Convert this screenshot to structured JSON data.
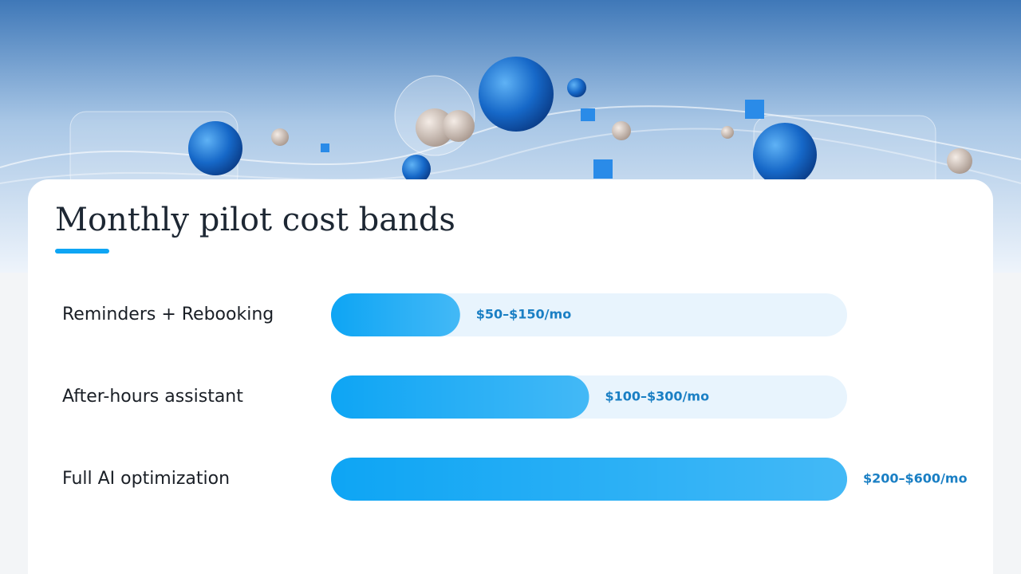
{
  "chart_data": {
    "type": "bar",
    "orientation": "horizontal",
    "title": "Monthly pilot cost bands",
    "categories": [
      "Reminders + Rebooking",
      "After-hours assistant",
      "Full AI optimization"
    ],
    "values": [
      150,
      300,
      600
    ],
    "value_labels": [
      "$50–$150/mo",
      "$100–$300/mo",
      "$200–$600/mo"
    ],
    "color": "#0ea5f4",
    "xlim": [
      0,
      600
    ]
  }
}
